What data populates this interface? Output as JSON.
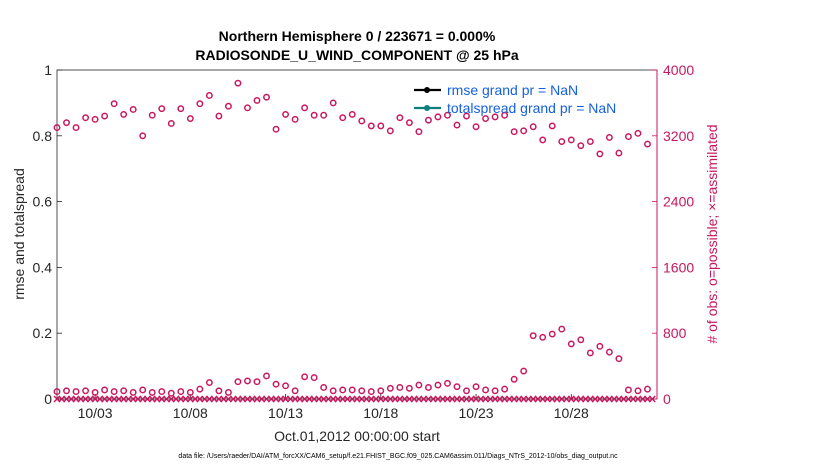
{
  "chart_data": {
    "type": "scatter",
    "title": "Northern Hemisphere 0 / 223671 = 0.000%",
    "subtitle": "RADIOSONDE_U_WIND_COMPONENT @ 25 hPa",
    "xlabel": "Oct.01,2012 00:00:00 start",
    "ylabel_left": "rmse and totalspread",
    "ylabel_right": "# of obs: o=possible; ×=assimilated",
    "ylim_left": [
      0,
      1
    ],
    "ylim_right": [
      0,
      4000
    ],
    "xlim": [
      1,
      32.5
    ],
    "grid": false,
    "legend_position": "top-right",
    "colors": {
      "obs": "#c8175f",
      "rmse": "#000000",
      "spread": "#0f7f7a",
      "legend_text": "#1560e0",
      "axis": "#262626"
    },
    "left_ticks": [
      {
        "value": 0,
        "label": "0"
      },
      {
        "value": 0.2,
        "label": "0.2"
      },
      {
        "value": 0.4,
        "label": "0.4"
      },
      {
        "value": 0.6,
        "label": "0.6"
      },
      {
        "value": 0.8,
        "label": "0.8"
      },
      {
        "value": 1,
        "label": "1"
      }
    ],
    "right_ticks": [
      {
        "value": 0,
        "label": "0"
      },
      {
        "value": 800,
        "label": "800"
      },
      {
        "value": 1600,
        "label": "1600"
      },
      {
        "value": 2400,
        "label": "2400"
      },
      {
        "value": 3200,
        "label": "3200"
      },
      {
        "value": 4000,
        "label": "4000"
      }
    ],
    "x_ticks": [
      {
        "value": 3,
        "label": "10/03"
      },
      {
        "value": 8,
        "label": "10/08"
      },
      {
        "value": 13,
        "label": "10/13"
      },
      {
        "value": 18,
        "label": "10/18"
      },
      {
        "value": 23,
        "label": "10/23"
      },
      {
        "value": 28,
        "label": "10/28"
      }
    ],
    "series": [
      {
        "name": "rmse grand pr = NaN",
        "values": []
      },
      {
        "name": "totalspread grand pr = NaN",
        "values": []
      },
      {
        "marker": "circle",
        "axis": "right",
        "x": [
          1.0,
          1.5,
          2.0,
          2.5,
          3.0,
          3.5,
          4.0,
          4.5,
          5.0,
          5.5,
          6.0,
          6.5,
          7.0,
          7.5,
          8.0,
          8.5,
          9.0,
          9.5,
          10.0,
          10.5,
          11.0,
          11.5,
          12.0,
          12.5,
          13.0,
          13.5,
          14.0,
          14.5,
          15.0,
          15.5,
          16.0,
          16.5,
          17.0,
          17.5,
          18.0,
          18.5,
          19.0,
          19.5,
          20.0,
          20.5,
          21.0,
          21.5,
          22.0,
          22.5,
          23.0,
          23.5,
          24.0,
          24.5,
          25.0,
          25.5,
          26.0,
          26.5,
          27.0,
          27.5,
          28.0,
          28.5,
          29.0,
          29.5,
          30.0,
          30.5,
          31.0,
          31.5,
          32.0
        ],
        "values": [
          3300,
          3360,
          3300,
          3420,
          3400,
          3440,
          3590,
          3460,
          3520,
          3200,
          3450,
          3530,
          3350,
          3530,
          3410,
          3590,
          3690,
          3440,
          3560,
          3840,
          3540,
          3630,
          3670,
          3280,
          3460,
          3400,
          3540,
          3450,
          3450,
          3600,
          3420,
          3460,
          3380,
          3320,
          3320,
          3260,
          3420,
          3360,
          3250,
          3390,
          3430,
          3450,
          3330,
          3440,
          3310,
          3410,
          3430,
          3450,
          3250,
          3260,
          3310,
          3150,
          3320,
          3130,
          3150,
          3080,
          3130,
          2980,
          3180,
          2990,
          3190,
          3230,
          3100
        ]
      },
      {
        "marker": "circle",
        "axis": "right",
        "x": [
          1.0,
          1.5,
          2.0,
          2.5,
          3.0,
          3.5,
          4.0,
          4.5,
          5.0,
          5.5,
          6.0,
          6.5,
          7.0,
          7.5,
          8.0,
          8.5,
          9.0,
          9.5,
          10.0,
          10.5,
          11.0,
          11.5,
          12.0,
          12.5,
          13.0,
          13.5,
          14.0,
          14.5,
          15.0,
          15.5,
          16.0,
          16.5,
          17.0,
          17.5,
          18.0,
          18.5,
          19.0,
          19.5,
          20.0,
          20.5,
          21.0,
          21.5,
          22.0,
          22.5,
          23.0,
          23.5,
          24.0,
          24.5,
          25.0,
          25.5,
          26.0,
          26.5,
          27.0,
          27.5,
          28.0,
          28.5,
          29.0,
          29.5,
          30.0,
          30.5,
          31.0,
          31.5,
          32.0
        ],
        "values": [
          90,
          100,
          90,
          100,
          80,
          110,
          90,
          100,
          80,
          110,
          80,
          90,
          70,
          90,
          80,
          120,
          200,
          100,
          80,
          210,
          220,
          210,
          280,
          180,
          160,
          100,
          270,
          260,
          140,
          100,
          110,
          110,
          100,
          90,
          100,
          130,
          140,
          130,
          170,
          140,
          170,
          190,
          150,
          100,
          150,
          110,
          100,
          120,
          240,
          340,
          770,
          750,
          790,
          850,
          670,
          720,
          560,
          640,
          570,
          490,
          110,
          100,
          120
        ]
      },
      {
        "marker": "x",
        "axis": "right",
        "x": [
          1.0,
          1.25,
          1.5,
          1.75,
          2.0,
          2.25,
          2.5,
          2.75,
          3.0,
          3.25,
          3.5,
          3.75,
          4.0,
          4.25,
          4.5,
          4.75,
          5.0,
          5.25,
          5.5,
          5.75,
          6.0,
          6.25,
          6.5,
          6.75,
          7.0,
          7.25,
          7.5,
          7.75,
          8.0,
          8.25,
          8.5,
          8.75,
          9.0,
          9.25,
          9.5,
          9.75,
          10.0,
          10.25,
          10.5,
          10.75,
          11.0,
          11.25,
          11.5,
          11.75,
          12.0,
          12.25,
          12.5,
          12.75,
          13.0,
          13.25,
          13.5,
          13.75,
          14.0,
          14.25,
          14.5,
          14.75,
          15.0,
          15.25,
          15.5,
          15.75,
          16.0,
          16.25,
          16.5,
          16.75,
          17.0,
          17.25,
          17.5,
          17.75,
          18.0,
          18.25,
          18.5,
          18.75,
          19.0,
          19.25,
          19.5,
          19.75,
          20.0,
          20.25,
          20.5,
          20.75,
          21.0,
          21.25,
          21.5,
          21.75,
          22.0,
          22.25,
          22.5,
          22.75,
          23.0,
          23.25,
          23.5,
          23.75,
          24.0,
          24.25,
          24.5,
          24.75,
          25.0,
          25.25,
          25.5,
          25.75,
          26.0,
          26.25,
          26.5,
          26.75,
          27.0,
          27.25,
          27.5,
          27.75,
          28.0,
          28.25,
          28.5,
          28.75,
          29.0,
          29.25,
          29.5,
          29.75,
          30.0,
          30.25,
          30.5,
          30.75,
          31.0,
          31.25,
          31.5,
          31.75,
          32.0,
          32.25
        ],
        "values": [
          0,
          0,
          0,
          0,
          0,
          0,
          0,
          0,
          0,
          0,
          0,
          0,
          0,
          0,
          0,
          0,
          0,
          0,
          0,
          0,
          0,
          0,
          0,
          0,
          0,
          0,
          0,
          0,
          0,
          0,
          0,
          0,
          0,
          0,
          0,
          0,
          0,
          0,
          0,
          0,
          0,
          0,
          0,
          0,
          0,
          0,
          0,
          0,
          0,
          0,
          0,
          0,
          0,
          0,
          0,
          0,
          0,
          0,
          0,
          0,
          0,
          0,
          0,
          0,
          0,
          0,
          0,
          0,
          0,
          0,
          0,
          0,
          0,
          0,
          0,
          0,
          0,
          0,
          0,
          0,
          0,
          0,
          0,
          0,
          0,
          0,
          0,
          0,
          0,
          0,
          0,
          0,
          0,
          0,
          0,
          0,
          0,
          0,
          0,
          0,
          0,
          0,
          0,
          0,
          0,
          0,
          0,
          0,
          0,
          0,
          0,
          0,
          0,
          0,
          0,
          0,
          0,
          0,
          0,
          0,
          0,
          0,
          0,
          0,
          0,
          0
        ]
      }
    ]
  },
  "footnote": "data file: /Users/raeder/DAI/ATM_forcXX/CAM6_setup/f.e21.FHIST_BGC.f09_025.CAM6assim.011/Diags_NTrS_2012-10/obs_diag_output.nc"
}
